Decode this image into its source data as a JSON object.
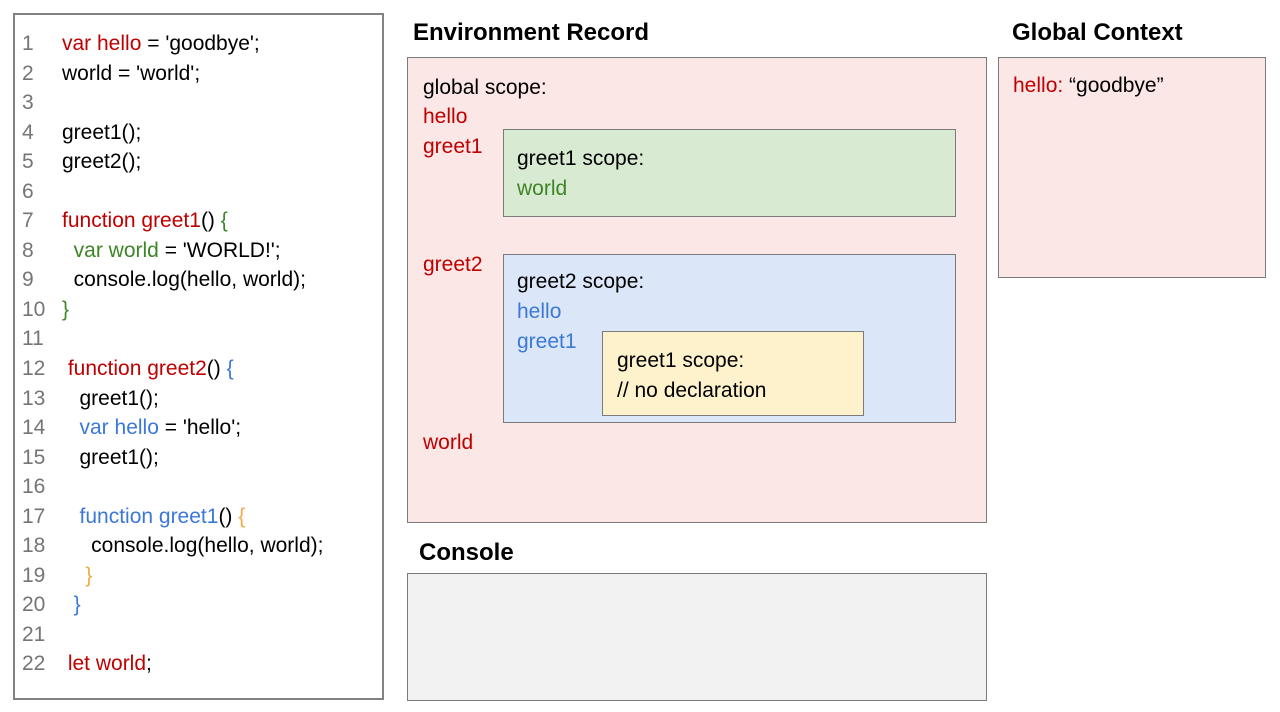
{
  "palette": {
    "red": "#c00000",
    "green": "#3e8527",
    "blue": "#3c78d8",
    "orange": "#f0ac44",
    "gray": "#757575",
    "codeBorder": "#828282",
    "borderGray": "#7b7b7b",
    "pinkFill": "#fce7e7",
    "greenFill": "#d9ead3",
    "blueFill": "#dbe7f8",
    "yellowFill": "#fdf2cc",
    "consoleFill": "#f2f2f2"
  },
  "code_panel": {
    "lines": [
      {
        "n": "1",
        "segments": [
          {
            "t": "var hello",
            "c": "red"
          },
          {
            "t": " = 'goodbye';",
            "c": "black"
          }
        ]
      },
      {
        "n": "2",
        "segments": [
          {
            "t": "world = 'world';",
            "c": "black"
          }
        ]
      },
      {
        "n": "3",
        "segments": []
      },
      {
        "n": "4",
        "segments": [
          {
            "t": "greet1();",
            "c": "black"
          }
        ]
      },
      {
        "n": "5",
        "segments": [
          {
            "t": "greet2();",
            "c": "black"
          }
        ]
      },
      {
        "n": "6",
        "segments": []
      },
      {
        "n": "7",
        "segments": [
          {
            "t": "function greet1",
            "c": "red"
          },
          {
            "t": "() ",
            "c": "black"
          },
          {
            "t": "{",
            "c": "green"
          }
        ]
      },
      {
        "n": "8",
        "segments": [
          {
            "t": "  var world",
            "c": "green"
          },
          {
            "t": " = 'WORLD!';",
            "c": "black"
          }
        ]
      },
      {
        "n": "9",
        "segments": [
          {
            "t": "  console.log(hello, world);",
            "c": "black"
          }
        ]
      },
      {
        "n": "10",
        "segments": [
          {
            "t": "}",
            "c": "green"
          }
        ]
      },
      {
        "n": "11",
        "segments": []
      },
      {
        "n": "12",
        "segments": [
          {
            "t": " function greet2",
            "c": "red"
          },
          {
            "t": "() ",
            "c": "black"
          },
          {
            "t": "{",
            "c": "blue"
          }
        ]
      },
      {
        "n": "13",
        "segments": [
          {
            "t": "   greet1();",
            "c": "black"
          }
        ]
      },
      {
        "n": "14",
        "segments": [
          {
            "t": "   var hello",
            "c": "blue"
          },
          {
            "t": " = 'hello';",
            "c": "black"
          }
        ]
      },
      {
        "n": "15",
        "segments": [
          {
            "t": "   greet1();",
            "c": "black"
          }
        ]
      },
      {
        "n": "16",
        "segments": []
      },
      {
        "n": "17",
        "segments": [
          {
            "t": "   function greet1",
            "c": "blue"
          },
          {
            "t": "() ",
            "c": "black"
          },
          {
            "t": "{",
            "c": "orange"
          }
        ]
      },
      {
        "n": "18",
        "segments": [
          {
            "t": "     console.log(hello, world);",
            "c": "black"
          }
        ]
      },
      {
        "n": "19",
        "segments": [
          {
            "t": "    }",
            "c": "orange"
          }
        ]
      },
      {
        "n": "20",
        "segments": [
          {
            "t": "  }",
            "c": "blue"
          }
        ]
      },
      {
        "n": "21",
        "segments": []
      },
      {
        "n": "22",
        "segments": [
          {
            "t": " let world",
            "c": "red"
          },
          {
            "t": ";",
            "c": "black"
          }
        ]
      }
    ]
  },
  "environment_record": {
    "title": "Environment Record",
    "global_scope_label": "global scope:",
    "globals": {
      "hello": "hello",
      "greet1": "greet1",
      "greet2": "greet2",
      "world": "world"
    },
    "greet1_scope": {
      "label": "greet1 scope:",
      "var_world": "world"
    },
    "greet2_scope": {
      "label": "greet2 scope:",
      "var_hello": "hello",
      "var_greet1": "greet1",
      "inner_greet1_scope": {
        "label": "greet1 scope:",
        "comment": "// no declaration"
      }
    }
  },
  "global_context": {
    "title": "Global Context",
    "entry_key": "hello:",
    "entry_value": " “goodbye”"
  },
  "console": {
    "title": "Console"
  }
}
